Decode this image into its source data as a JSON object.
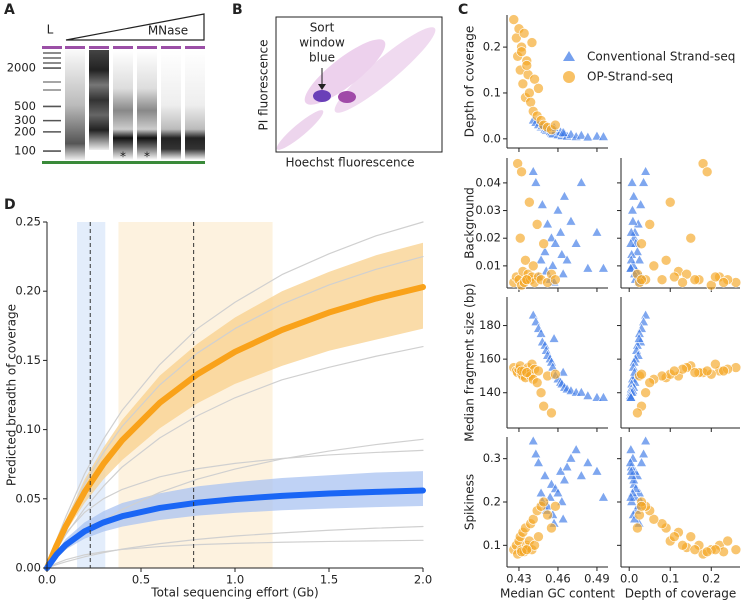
{
  "chart_data": [
    {
      "type": "gel",
      "panel": "A",
      "ladder_label": "L",
      "treatment": "MNase",
      "yticks": [
        2000,
        500,
        300,
        200,
        100
      ],
      "ylim": [
        4600,
        65
      ],
      "log_scale": true,
      "lane_marks": [
        "*",
        "*"
      ]
    },
    {
      "type": "density",
      "panel": "B",
      "annotation": [
        "Sort",
        "window",
        "blue"
      ],
      "xlabel": "Hoechst fluorescence",
      "ylabel": "PI fluorescence"
    },
    {
      "type": "pairplot",
      "panel": "C",
      "variables": [
        {
          "label": "Median GC content",
          "lim": [
            0.4208,
            0.4985
          ],
          "ticks": [
            0.43,
            0.46,
            0.49
          ]
        },
        {
          "label": "Depth of coverage",
          "lim": [
            -0.02,
            0.27
          ],
          "ticks": [
            {
              "value": 0,
              "label": "0.0"
            },
            0.1,
            0.2
          ]
        },
        {
          "label": "Background",
          "lim": [
            0.002,
            0.049
          ],
          "ticks": [
            0.01,
            0.02,
            0.03,
            0.04
          ]
        },
        {
          "label": "Median fragment size (bp)",
          "lim": [
            119,
            197
          ],
          "ticks": [
            140,
            160,
            180
          ]
        },
        {
          "label": "Spikiness",
          "lim": [
            0.05,
            0.35
          ],
          "ticks": [
            0.1,
            0.2,
            0.3
          ]
        }
      ],
      "series": [
        {
          "name": "Conventional Strand-seq",
          "color": "#3b78e7",
          "marker": "triangle",
          "data": [
            [
              0.441,
              0.443,
              0.445,
              0.447,
              0.448,
              0.45,
              0.451,
              0.452,
              0.454,
              0.455,
              0.456,
              0.458,
              0.46,
              0.462,
              0.463,
              0.465,
              0.467,
              0.47,
              0.474,
              0.478,
              0.483,
              0.49,
              0.495,
              0.457,
              0.464
            ],
            [
              0.04,
              0.035,
              0.03,
              0.025,
              0.028,
              0.02,
              0.018,
              0.022,
              0.015,
              0.012,
              0.01,
              0.016,
              0.008,
              0.014,
              0.006,
              0.011,
              0.005,
              0.009,
              0.004,
              0.007,
              0.003,
              0.005,
              0.004,
              0.024,
              0.013
            ],
            [
              0.044,
              0.04,
              0.006,
              0.012,
              0.032,
              0.015,
              0.008,
              0.025,
              0.005,
              0.02,
              0.01,
              0.018,
              0.03,
              0.022,
              0.014,
              0.035,
              0.012,
              0.026,
              0.018,
              0.04,
              0.009,
              0.022,
              0.009,
              0.004,
              0.007
            ],
            [
              186,
              182,
              178,
              175,
              170,
              168,
              165,
              162,
              160,
              158,
              155,
              150,
              148,
              146,
              145,
              143,
              142,
              141,
              140,
              140,
              138,
              137,
              137,
              172,
              152
            ],
            [
              0.34,
              0.31,
              0.29,
              0.22,
              0.2,
              0.26,
              0.18,
              0.19,
              0.21,
              0.24,
              0.17,
              0.23,
              0.22,
              0.27,
              0.2,
              0.25,
              0.28,
              0.3,
              0.32,
              0.26,
              0.29,
              0.27,
              0.21,
              0.15,
              0.16
            ]
          ]
        },
        {
          "name": "OP-Strand-seq",
          "color": "#f5a623",
          "marker": "circle",
          "data": [
            [
              0.426,
              0.428,
              0.429,
              0.43,
              0.431,
              0.432,
              0.433,
              0.434,
              0.435,
              0.436,
              0.437,
              0.438,
              0.439,
              0.44,
              0.441,
              0.442,
              0.444,
              0.445,
              0.447,
              0.449,
              0.452,
              0.455,
              0.458,
              0.432,
              0.436
            ],
            [
              0.26,
              0.22,
              0.18,
              0.24,
              0.15,
              0.2,
              0.12,
              0.23,
              0.09,
              0.17,
              0.14,
              0.1,
              0.08,
              0.21,
              0.06,
              0.13,
              0.05,
              0.11,
              0.04,
              0.03,
              0.025,
              0.02,
              0.03,
              0.19,
              0.16
            ],
            [
              0.004,
              0.006,
              0.047,
              0.005,
              0.02,
              0.003,
              0.008,
              0.004,
              0.012,
              0.005,
              0.007,
              0.033,
              0.005,
              0.006,
              0.01,
              0.004,
              0.025,
              0.006,
              0.005,
              0.018,
              0.004,
              0.007,
              0.005,
              0.044,
              0.005
            ],
            [
              155,
              153,
              152,
              154,
              156,
              151,
              150,
              153,
              149,
              152,
              155,
              151,
              150,
              157,
              148,
              154,
              146,
              153,
              140,
              132,
              150,
              128,
              151,
              153,
              152
            ],
            [
              0.09,
              0.1,
              0.08,
              0.11,
              0.12,
              0.09,
              0.13,
              0.085,
              0.14,
              0.1,
              0.095,
              0.11,
              0.15,
              0.09,
              0.16,
              0.1,
              0.18,
              0.12,
              0.19,
              0.2,
              0.17,
              0.14,
              0.19,
              0.085,
              0.09
            ]
          ]
        }
      ]
    },
    {
      "type": "line",
      "panel": "D",
      "xlabel": "Total sequencing effort (Gb)",
      "ylabel": "Predicted breadth of coverage",
      "x": [
        0,
        0.05,
        0.1,
        0.2,
        0.3,
        0.4,
        0.6,
        0.8,
        1.0,
        1.25,
        1.5,
        1.75,
        2.0
      ],
      "xlim": [
        0,
        2
      ],
      "ylim": [
        0,
        0.25
      ],
      "xticks": [
        {
          "value": 0,
          "label": "0.0"
        },
        0.5,
        {
          "value": 1,
          "label": "1.0"
        },
        1.5,
        {
          "value": 2,
          "label": "2.0"
        }
      ],
      "yticks": [
        {
          "value": 0,
          "label": "0.00"
        },
        0.05,
        {
          "value": 0.1,
          "label": "0.10"
        },
        0.15,
        {
          "value": 0.2,
          "label": "0.20"
        },
        0.25
      ],
      "spans": [
        {
          "xlim": [
            0.16,
            0.31
          ],
          "color": "#e3edfb"
        },
        {
          "xlim": [
            0.38,
            1.2
          ],
          "color": "#fdf2df"
        }
      ],
      "vlines": [
        0.23,
        0.78
      ],
      "bands": [
        {
          "color": "#f8d08c",
          "upper": [
            0,
            0.019,
            0.035,
            0.064,
            0.087,
            0.107,
            0.139,
            0.162,
            0.181,
            0.2,
            0.214,
            0.226,
            0.235
          ],
          "lower": [
            0,
            0.014,
            0.026,
            0.047,
            0.064,
            0.078,
            0.101,
            0.119,
            0.133,
            0.146,
            0.157,
            0.165,
            0.173
          ]
        },
        {
          "color": "#aac3f2",
          "upper": [
            0,
            0.012,
            0.021,
            0.033,
            0.041,
            0.047,
            0.054,
            0.059,
            0.062,
            0.065,
            0.067,
            0.069,
            0.07
          ],
          "lower": [
            0,
            0.0077,
            0.0134,
            0.0212,
            0.0263,
            0.0299,
            0.0347,
            0.0378,
            0.0398,
            0.0417,
            0.043,
            0.044,
            0.0448
          ]
        }
      ],
      "series": [
        {
          "color": "#d0d0d0",
          "linewidth": 1.2,
          "values": [
            0,
            0.02,
            0.037,
            0.068,
            0.093,
            0.114,
            0.147,
            0.173,
            0.192,
            0.212,
            0.227,
            0.24,
            0.25
          ]
        },
        {
          "color": "#d0d0d0",
          "linewidth": 1.2,
          "values": [
            0,
            0.0178,
            0.0335,
            0.0608,
            0.0833,
            0.1024,
            0.1323,
            0.1553,
            0.173,
            0.1906,
            0.2045,
            0.2158,
            0.225
          ]
        },
        {
          "color": "#d0d0d0",
          "linewidth": 1.2,
          "values": [
            0,
            0.013,
            0.024,
            0.043,
            0.059,
            0.073,
            0.094,
            0.11,
            0.123,
            0.136,
            0.145,
            0.153,
            0.16
          ]
        },
        {
          "color": "#d0d0d0",
          "linewidth": 1.2,
          "values": [
            0,
            0.0073,
            0.0139,
            0.0251,
            0.0344,
            0.0423,
            0.0547,
            0.0642,
            0.0715,
            0.0788,
            0.0845,
            0.0892,
            0.093
          ]
        },
        {
          "color": "#d0d0d0",
          "linewidth": 1.2,
          "values": [
            0,
            0.0145,
            0.0253,
            0.0402,
            0.05,
            0.0568,
            0.0659,
            0.0717,
            0.0756,
            0.0791,
            0.0817,
            0.0835,
            0.085
          ]
        },
        {
          "color": "#d0d0d0",
          "linewidth": 1.2,
          "values": [
            0,
            0.0024,
            0.0045,
            0.0081,
            0.0111,
            0.0137,
            0.0176,
            0.0207,
            0.0231,
            0.0254,
            0.0273,
            0.0288,
            0.03
          ]
        },
        {
          "color": "#d0d0d0",
          "linewidth": 1.2,
          "values": [
            0,
            0.0034,
            0.006,
            0.0095,
            0.0118,
            0.0134,
            0.0155,
            0.0169,
            0.0178,
            0.0186,
            0.0192,
            0.0196,
            0.02
          ]
        },
        {
          "color": "#f9a21a",
          "linewidth": 6,
          "values": [
            0,
            0.016,
            0.0303,
            0.0549,
            0.0752,
            0.0923,
            0.1194,
            0.14,
            0.1562,
            0.172,
            0.1846,
            0.1947,
            0.203
          ]
        },
        {
          "color": "#1a66f5",
          "linewidth": 6,
          "values": [
            0,
            0.0096,
            0.0167,
            0.0265,
            0.0329,
            0.0374,
            0.0434,
            0.0472,
            0.0498,
            0.0521,
            0.0538,
            0.055,
            0.056
          ]
        }
      ]
    }
  ]
}
